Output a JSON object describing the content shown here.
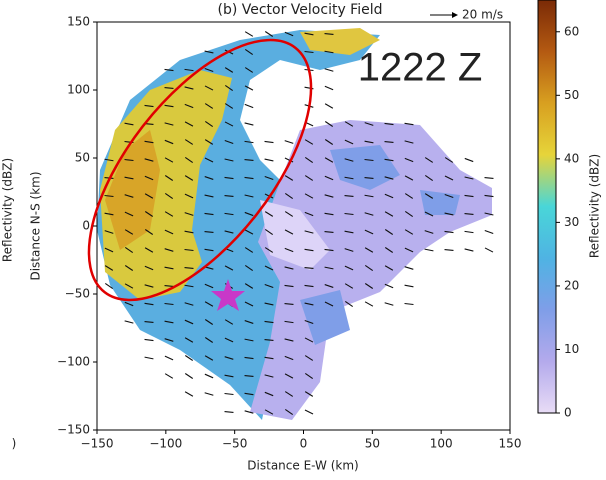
{
  "chart_data": {
    "type": "radar-map",
    "title": "(b) Vector Velocity Field",
    "annotation": "1222 Z",
    "vector_key": "20 m/s",
    "xlabel": "Distance E-W (km)",
    "ylabel": "Distance N-S (km)",
    "left_panel_label": "Reflectivity (dBZ)",
    "left_panel_fragment": ")",
    "xlim": [
      -150,
      150
    ],
    "ylim": [
      -150,
      150
    ],
    "xticks": [
      {
        "value": -150,
        "label": "−150"
      },
      {
        "value": -100,
        "label": "−100"
      },
      {
        "value": -50,
        "label": "−50"
      },
      0,
      50,
      100,
      150
    ],
    "yticks": [
      {
        "value": -150,
        "label": "−150"
      },
      {
        "value": -100,
        "label": "−100"
      },
      {
        "value": -50,
        "label": "−50"
      },
      0,
      50,
      100,
      150
    ],
    "colorbar": {
      "label": "Reflectivity (dBZ)",
      "lim": [
        0,
        65
      ],
      "ticks": [
        0,
        10,
        20,
        30,
        40,
        50,
        60
      ],
      "colormap": [
        "#e8dcf6",
        "#b4aaec",
        "#7f9ee8",
        "#4fb3e3",
        "#49d6d8",
        "#e6d43a",
        "#d8a020",
        "#b45a12",
        "#7a2a06"
      ]
    }
  }
}
